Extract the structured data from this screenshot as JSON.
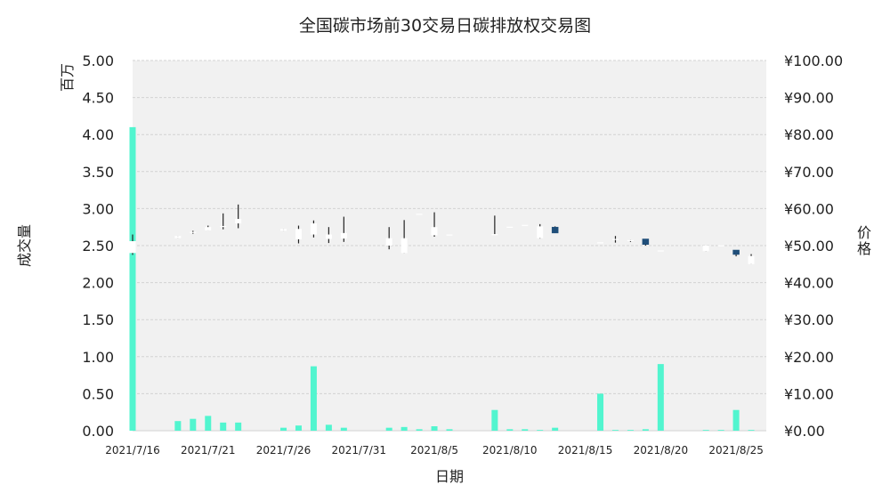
{
  "chart_data": {
    "type": "bar",
    "title": "全国碳市场前30交易日碳排放权交易图",
    "xlabel": "日期",
    "ylabel_left_unit": "百万",
    "ylabel_left": "成交量",
    "ylabel_right": "价格",
    "ylim_left": [
      0,
      5
    ],
    "ylim_right": [
      0,
      100
    ],
    "yticks_left": [
      "0.00",
      "0.50",
      "1.00",
      "1.50",
      "2.00",
      "2.50",
      "3.00",
      "3.50",
      "4.00",
      "4.50",
      "5.00"
    ],
    "yticks_right": [
      "¥0.00",
      "¥10.00",
      "¥20.00",
      "¥30.00",
      "¥40.00",
      "¥50.00",
      "¥60.00",
      "¥70.00",
      "¥80.00",
      "¥90.00",
      "¥100.00"
    ],
    "xticks": [
      "2021/7/16",
      "2021/7/21",
      "2021/7/26",
      "2021/7/31",
      "2021/8/5",
      "2021/8/10",
      "2021/8/15",
      "2021/8/20",
      "2021/8/25"
    ],
    "x_start": "2021/7/16",
    "x_end": "2021/8/27",
    "grid": true,
    "colors": {
      "volume": "#52f5cf",
      "candle_up": "#ffffff",
      "candle_down": "#1f4e79",
      "wick": "#222222",
      "plot_bg": "#f1f1f1",
      "grid": "#d2d2d2"
    },
    "series": [
      {
        "name": "成交量",
        "type": "bar",
        "axis": "left",
        "unit": "百万",
        "points": [
          {
            "date": "2021/7/16",
            "value": 4.1
          },
          {
            "date": "2021/7/19",
            "value": 0.13
          },
          {
            "date": "2021/7/20",
            "value": 0.16
          },
          {
            "date": "2021/7/21",
            "value": 0.2
          },
          {
            "date": "2021/7/22",
            "value": 0.11
          },
          {
            "date": "2021/7/23",
            "value": 0.11
          },
          {
            "date": "2021/7/26",
            "value": 0.04
          },
          {
            "date": "2021/7/27",
            "value": 0.07
          },
          {
            "date": "2021/7/28",
            "value": 0.87
          },
          {
            "date": "2021/7/29",
            "value": 0.08
          },
          {
            "date": "2021/7/30",
            "value": 0.04
          },
          {
            "date": "2021/8/2",
            "value": 0.04
          },
          {
            "date": "2021/8/3",
            "value": 0.05
          },
          {
            "date": "2021/8/4",
            "value": 0.02
          },
          {
            "date": "2021/8/5",
            "value": 0.06
          },
          {
            "date": "2021/8/6",
            "value": 0.02
          },
          {
            "date": "2021/8/9",
            "value": 0.28
          },
          {
            "date": "2021/8/10",
            "value": 0.02
          },
          {
            "date": "2021/8/11",
            "value": 0.02
          },
          {
            "date": "2021/8/12",
            "value": 0.01
          },
          {
            "date": "2021/8/13",
            "value": 0.04
          },
          {
            "date": "2021/8/16",
            "value": 0.5
          },
          {
            "date": "2021/8/17",
            "value": 0.01
          },
          {
            "date": "2021/8/18",
            "value": 0.01
          },
          {
            "date": "2021/8/19",
            "value": 0.02
          },
          {
            "date": "2021/8/20",
            "value": 0.9
          },
          {
            "date": "2021/8/23",
            "value": 0.01
          },
          {
            "date": "2021/8/24",
            "value": 0.01
          },
          {
            "date": "2021/8/25",
            "value": 0.28
          },
          {
            "date": "2021/8/26",
            "value": 0.01
          }
        ]
      },
      {
        "name": "价格",
        "type": "candlestick",
        "axis": "right",
        "points": [
          {
            "date": "2021/7/16",
            "open": 48.0,
            "high": 53.0,
            "low": 47.5,
            "close": 51.2
          },
          {
            "date": "2021/7/19",
            "open": 52.0,
            "high": 52.6,
            "low": 52.0,
            "close": 52.6
          },
          {
            "date": "2021/7/20",
            "open": 53.7,
            "high": 54.0,
            "low": 53.2,
            "close": 53.7
          },
          {
            "date": "2021/7/21",
            "open": 54.1,
            "high": 55.4,
            "low": 54.1,
            "close": 55.0
          },
          {
            "date": "2021/7/22",
            "open": 55.0,
            "high": 58.7,
            "low": 54.4,
            "close": 55.3
          },
          {
            "date": "2021/7/23",
            "open": 56.0,
            "high": 61.1,
            "low": 54.7,
            "close": 57.2
          },
          {
            "date": "2021/7/26",
            "open": 54.0,
            "high": 54.5,
            "low": 54.0,
            "close": 54.5
          },
          {
            "date": "2021/7/27",
            "open": 51.7,
            "high": 55.4,
            "low": 50.6,
            "close": 54.5
          },
          {
            "date": "2021/7/28",
            "open": 53.0,
            "high": 56.8,
            "low": 52.2,
            "close": 56.0
          },
          {
            "date": "2021/7/29",
            "open": 51.8,
            "high": 55.0,
            "low": 50.7,
            "close": 53.0
          },
          {
            "date": "2021/7/30",
            "open": 51.9,
            "high": 57.8,
            "low": 51.0,
            "close": 53.4
          },
          {
            "date": "2021/8/2",
            "open": 50.0,
            "high": 55.0,
            "low": 49.0,
            "close": 52.0
          },
          {
            "date": "2021/8/3",
            "open": 48.0,
            "high": 56.9,
            "low": 48.0,
            "close": 52.0
          },
          {
            "date": "2021/8/4",
            "open": 58.6,
            "high": 58.6,
            "low": 58.6,
            "close": 58.6
          },
          {
            "date": "2021/8/5",
            "open": 52.8,
            "high": 59.0,
            "low": 52.4,
            "close": 55.0
          },
          {
            "date": "2021/8/6",
            "open": 53.0,
            "high": 53.0,
            "low": 53.0,
            "close": 53.0
          },
          {
            "date": "2021/8/9",
            "open": 53.1,
            "high": 58.1,
            "low": 53.1,
            "close": 53.1
          },
          {
            "date": "2021/8/10",
            "open": 55.1,
            "high": 55.1,
            "low": 55.1,
            "close": 55.1
          },
          {
            "date": "2021/8/11",
            "open": 55.6,
            "high": 55.6,
            "low": 55.6,
            "close": 55.6
          },
          {
            "date": "2021/8/12",
            "open": 52.0,
            "high": 55.8,
            "low": 51.9,
            "close": 55.2
          },
          {
            "date": "2021/8/13",
            "open": 55.0,
            "high": 55.2,
            "low": 53.4,
            "close": 53.4
          },
          {
            "date": "2021/8/16",
            "open": 50.9,
            "high": 50.9,
            "low": 50.9,
            "close": 50.9
          },
          {
            "date": "2021/8/17",
            "open": 51.8,
            "high": 52.6,
            "low": 50.8,
            "close": 51.8
          },
          {
            "date": "2021/8/18",
            "open": 51.5,
            "high": 51.5,
            "low": 51.0,
            "close": 51.5
          },
          {
            "date": "2021/8/19",
            "open": 51.8,
            "high": 51.8,
            "low": 50.0,
            "close": 50.3
          },
          {
            "date": "2021/8/20",
            "open": 48.7,
            "high": 48.7,
            "low": 48.7,
            "close": 48.7
          },
          {
            "date": "2021/8/23",
            "open": 48.5,
            "high": 50.0,
            "low": 48.5,
            "close": 50.0
          },
          {
            "date": "2021/8/24",
            "open": 50.1,
            "high": 50.1,
            "low": 50.1,
            "close": 50.1
          },
          {
            "date": "2021/8/25",
            "open": 48.8,
            "high": 48.8,
            "low": 47.1,
            "close": 47.6
          },
          {
            "date": "2021/8/26",
            "open": 45.0,
            "high": 47.7,
            "low": 45.0,
            "close": 47.2
          }
        ]
      }
    ]
  }
}
